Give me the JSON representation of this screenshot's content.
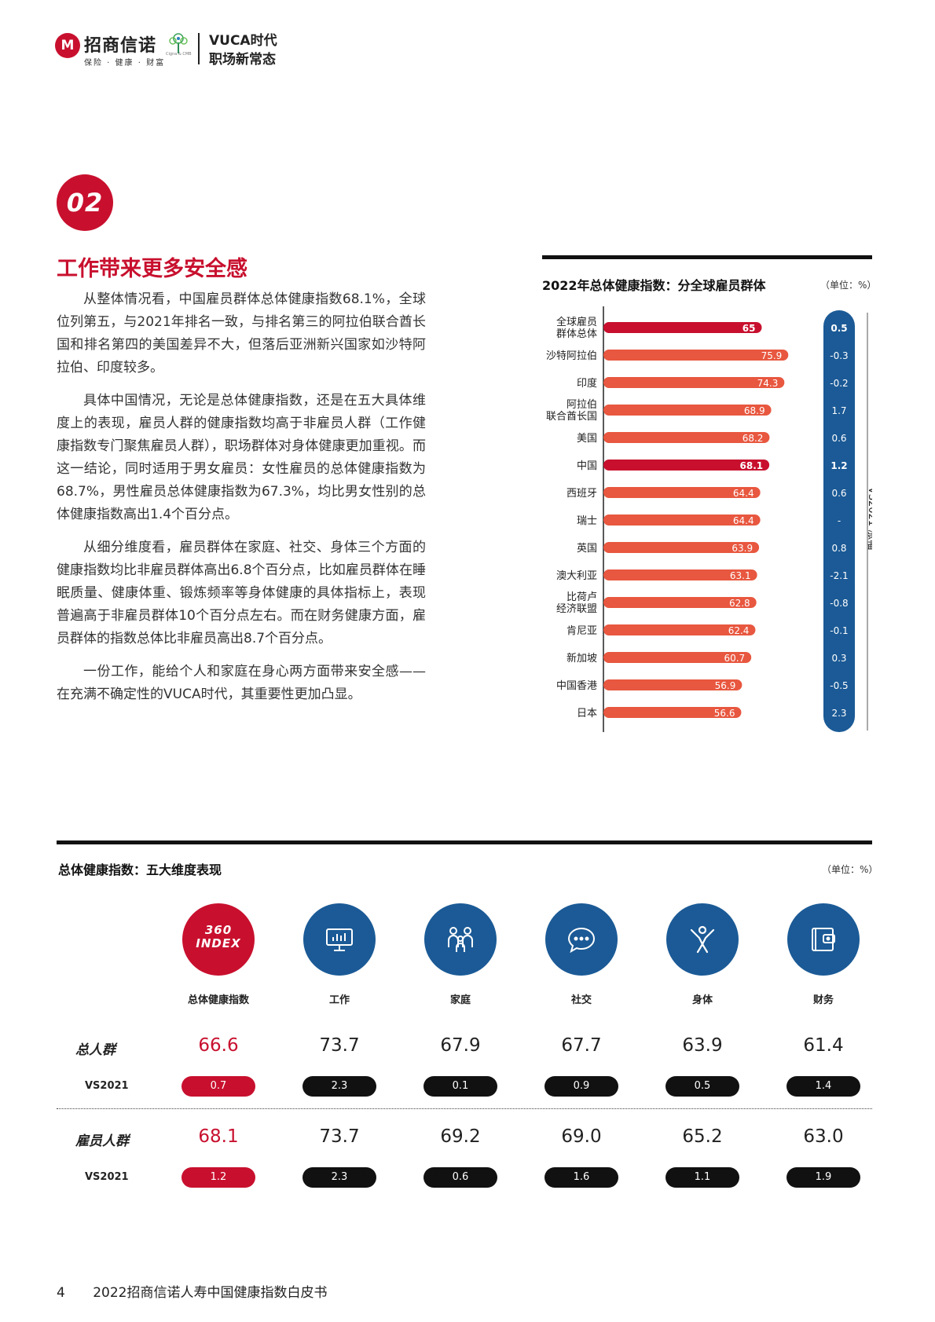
{
  "header": {
    "brand_logo_text": "M",
    "brand_name": "招商信诺",
    "brand_tagline": "保险 · 健康 · 财富",
    "tree_caption": "Cigna & CMB",
    "title_line1": "VUCA时代",
    "title_line2": "职场新常态"
  },
  "section": {
    "number": "02",
    "title": "工作带来更多安全感",
    "paragraphs": [
      "从整体情况看，中国雇员群体总体健康指数68.1%，全球位列第五，与2021年排名一致，与排名第三的阿拉伯联合酋长国和排名第四的美国差异不大，但落后亚洲新兴国家如沙特阿拉伯、印度较多。",
      "具体中国情况，无论是总体健康指数，还是在五大具体维度上的表现，雇员人群的健康指数均高于非雇员人群（工作健康指数专门聚焦雇员人群），职场群体对身体健康更加重视。而这一结论，同时适用于男女雇员：女性雇员的总体健康指数为68.7%，男性雇员总体健康指数为67.3%，均比男女性别的总体健康指数高出1.4个百分点。",
      "从细分维度看，雇员群体在家庭、社交、身体三个方面的健康指数均比非雇员群体高出6.8个百分点，比如雇员群体在睡眠质量、健康体重、锻炼频率等身体健康的具体指标上，表现普遍高于非雇员群体10个百分点左右。而在财务健康方面，雇员群体的指数总体比非雇员高出8.7个百分点。",
      "一份工作，能给个人和家庭在身心两方面带来安全感——在充满不确定性的VUCA时代，其重要性更加凸显。"
    ]
  },
  "chart_data": [
    {
      "type": "bar",
      "orientation": "horizontal",
      "title": "2022年总体健康指数：分全球雇员群体",
      "unit": "（单位：%）",
      "side_axis_label": "VS2021 涨幅",
      "categories": [
        [
          "全球雇员",
          "群体总体"
        ],
        [
          "沙特阿拉伯"
        ],
        [
          "印度"
        ],
        [
          "阿拉伯",
          "联合酋长国"
        ],
        [
          "美国"
        ],
        [
          "中国"
        ],
        [
          "西班牙"
        ],
        [
          "瑞士"
        ],
        [
          "英国"
        ],
        [
          "澳大利亚"
        ],
        [
          "比荷卢",
          "经济联盟"
        ],
        [
          "肯尼亚"
        ],
        [
          "新加坡"
        ],
        [
          "中国香港"
        ],
        [
          "日本"
        ]
      ],
      "values": [
        65,
        75.9,
        74.3,
        68.9,
        68.2,
        68.1,
        64.4,
        64.4,
        63.9,
        63.1,
        62.8,
        62.4,
        60.7,
        56.9,
        56.6
      ],
      "value_labels": [
        "65",
        "75.9",
        "74.3",
        "68.9",
        "68.2",
        "68.1",
        "64.4",
        "64.4",
        "63.9",
        "63.1",
        "62.8",
        "62.4",
        "60.7",
        "56.9",
        "56.6"
      ],
      "vs2021": [
        "0.5",
        "-0.3",
        "-0.2",
        "1.7",
        "0.6",
        "1.2",
        "0.6",
        "-",
        "0.8",
        "-2.1",
        "-0.8",
        "-0.1",
        "0.3",
        "-0.5",
        "2.3"
      ],
      "highlight": [
        true,
        false,
        false,
        false,
        false,
        true,
        false,
        false,
        false,
        false,
        false,
        false,
        false,
        false,
        false
      ],
      "colors": {
        "normal": "#e8573f",
        "highlight": "#c8102e",
        "vs_panel": "#1b5a96"
      }
    },
    {
      "type": "table",
      "title": "总体健康指数：五大维度表现",
      "unit": "（单位：%）",
      "index_badge": [
        "360",
        "INDEX"
      ],
      "dimensions": [
        {
          "label": "总体健康指数",
          "icon": "360-index-badge"
        },
        {
          "label": "工作",
          "icon": "presentation-board-icon"
        },
        {
          "label": "家庭",
          "icon": "family-icon"
        },
        {
          "label": "社交",
          "icon": "chat-bubble-icon"
        },
        {
          "label": "身体",
          "icon": "person-exercise-icon"
        },
        {
          "label": "财务",
          "icon": "wallet-icon"
        }
      ],
      "rows": [
        {
          "label": "总人群",
          "vs_label": "VS2021",
          "values": [
            "66.6",
            "73.7",
            "67.9",
            "67.7",
            "63.9",
            "61.4"
          ],
          "vs2021": [
            "0.7",
            "2.3",
            "0.1",
            "0.9",
            "0.5",
            "1.4"
          ]
        },
        {
          "label": "雇员人群",
          "vs_label": "VS2021",
          "values": [
            "68.1",
            "73.7",
            "69.2",
            "69.0",
            "65.2",
            "63.0"
          ],
          "vs2021": [
            "1.2",
            "2.3",
            "0.6",
            "1.6",
            "1.1",
            "1.9"
          ]
        }
      ]
    }
  ],
  "footer": {
    "page_number": "4",
    "doc_title": "2022招商信诺人寿中国健康指数白皮书"
  }
}
